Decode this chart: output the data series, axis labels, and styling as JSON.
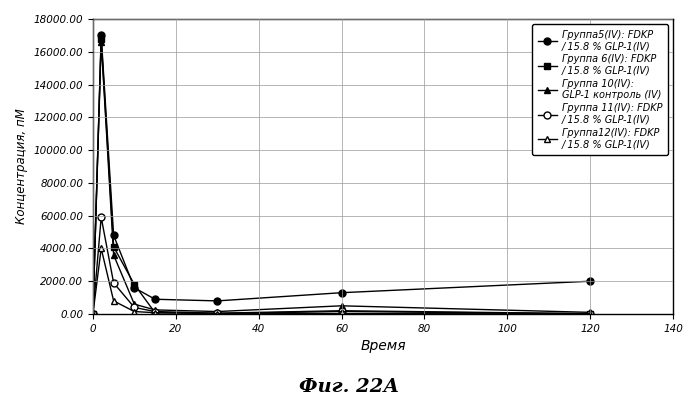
{
  "title": "Фиг. 22А",
  "ylabel": "Концентрация, пМ",
  "xlabel": "Время",
  "xlim": [
    0,
    140
  ],
  "ylim": [
    0,
    18000
  ],
  "yticks": [
    0,
    2000,
    4000,
    6000,
    8000,
    10000,
    12000,
    14000,
    16000,
    18000
  ],
  "ytick_labels": [
    "0.00",
    "2000.00",
    "4000.00",
    "6000.00",
    "8000.00",
    "10000.00",
    "12000.00",
    "14000.00",
    "16000.00",
    "18000.00"
  ],
  "xticks": [
    0,
    20,
    40,
    60,
    80,
    100,
    120,
    140
  ],
  "series": [
    {
      "label": "Группа5(IV): FDKP\n/ 15.8 % GLP-1(IV)",
      "x": [
        0,
        2,
        5,
        10,
        15,
        30,
        60,
        120
      ],
      "y": [
        0,
        17000,
        4800,
        1600,
        900,
        800,
        1300,
        2000
      ],
      "marker": "o",
      "filled": true,
      "color": "black",
      "linestyle": "-",
      "markersize": 5
    },
    {
      "label": "Группа 6(IV): FDKP\n/ 15.8 % GLP-1(IV)",
      "x": [
        0,
        2,
        5,
        10,
        15,
        30,
        60,
        120
      ],
      "y": [
        0,
        16800,
        4100,
        1800,
        80,
        30,
        20,
        10
      ],
      "marker": "s",
      "filled": true,
      "color": "black",
      "linestyle": "-",
      "markersize": 5
    },
    {
      "label": "Группа 10(IV):\nGLP-1 контроль (IV)",
      "x": [
        0,
        2,
        5,
        10,
        15,
        30,
        60,
        120
      ],
      "y": [
        0,
        16600,
        3600,
        600,
        250,
        150,
        500,
        100
      ],
      "marker": "^",
      "filled": true,
      "color": "black",
      "linestyle": "-",
      "markersize": 5
    },
    {
      "label": "Группа 11(IV): FDKP\n/ 15.8 % GLP-1(IV)",
      "x": [
        0,
        2,
        5,
        10,
        15,
        30,
        60,
        120
      ],
      "y": [
        0,
        5900,
        1900,
        400,
        150,
        50,
        200,
        20
      ],
      "marker": "o",
      "filled": false,
      "color": "black",
      "linestyle": "-",
      "markersize": 5
    },
    {
      "label": "Группа12(IV): FDKP\n/ 15.8 % GLP-1(IV)",
      "x": [
        0,
        2,
        5,
        10,
        15,
        30,
        60,
        120
      ],
      "y": [
        0,
        4000,
        800,
        150,
        80,
        30,
        150,
        20
      ],
      "marker": "^",
      "filled": false,
      "color": "black",
      "linestyle": "-",
      "markersize": 5
    }
  ],
  "legend_loc": "upper right",
  "background_color": "white",
  "grid_color": "#999999"
}
